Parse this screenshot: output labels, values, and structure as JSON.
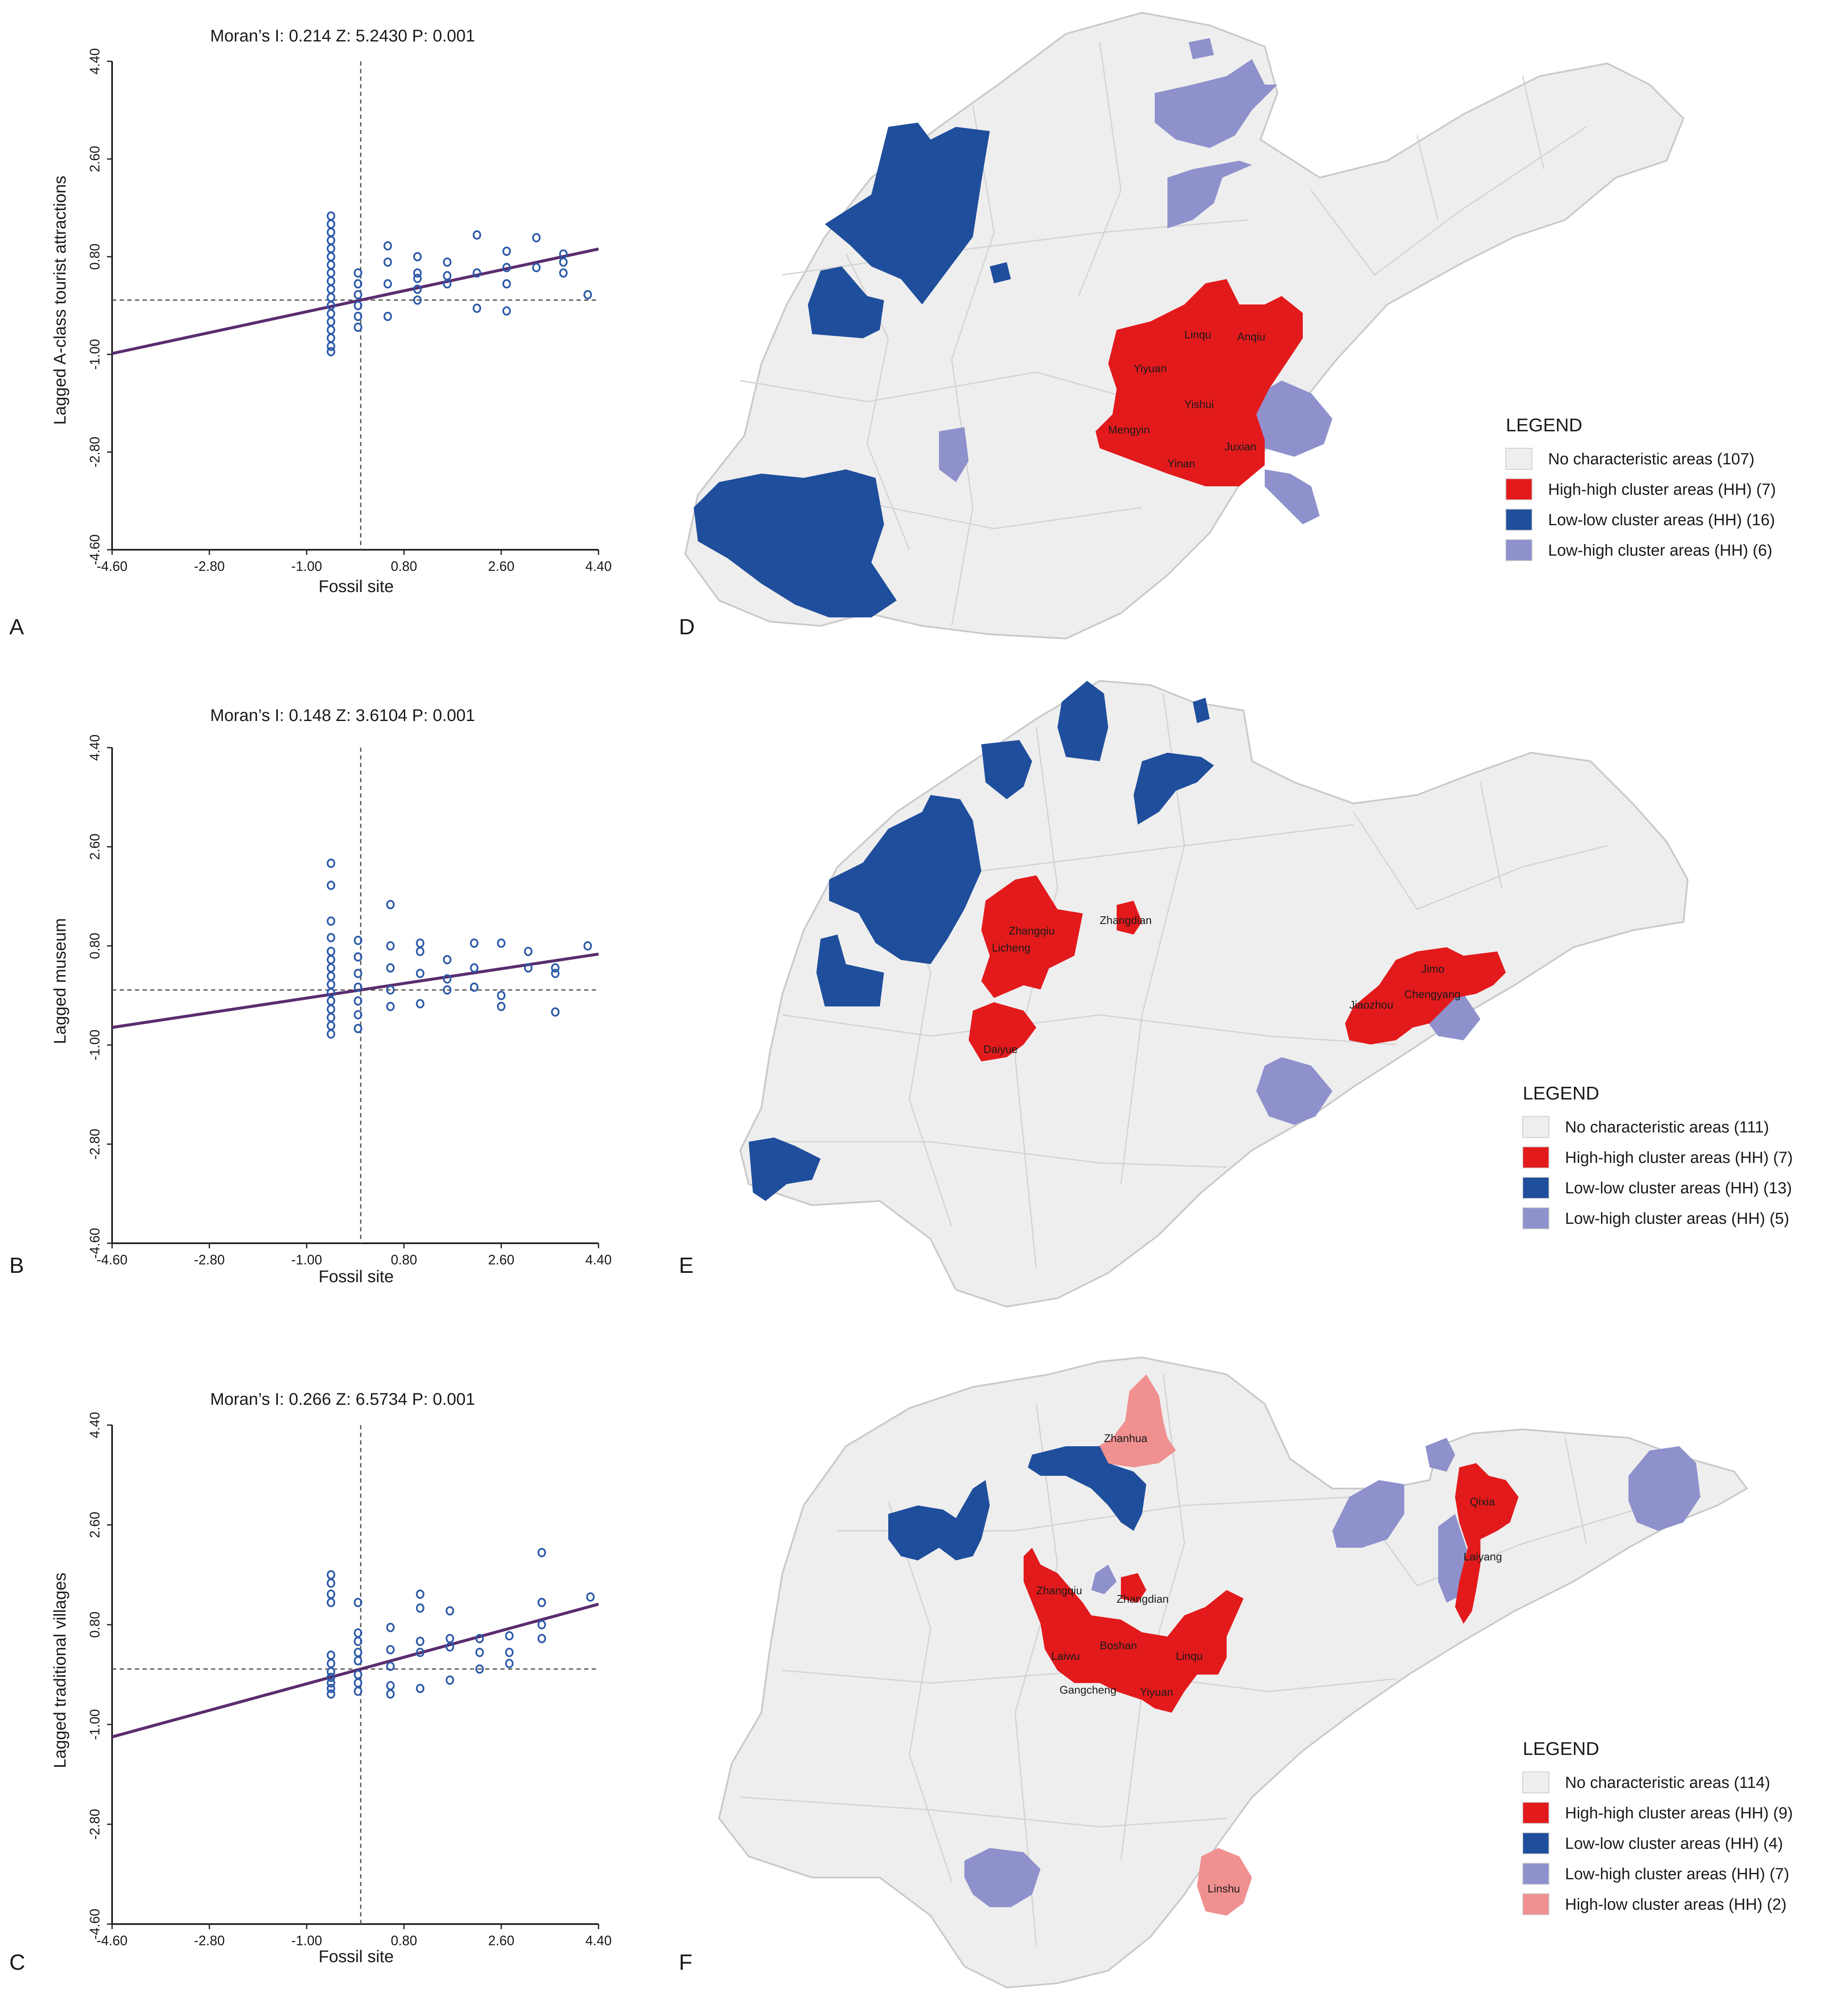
{
  "colors": {
    "point": "#2b59a8",
    "regression": "#5a2d6f",
    "axis": "#222222",
    "no_char": "#eeeeee",
    "boundary": "#c9c9c9",
    "hh": "#e31a1c",
    "ll": "#1f4e9c",
    "lh": "#8e91cc",
    "hl": "#f09090"
  },
  "panel_letters": [
    "A",
    "B",
    "C",
    "D",
    "E",
    "F"
  ],
  "chart_data": [
    {
      "type": "scatter",
      "panel": "A",
      "title": "Moran’s I: 0.214   Z: 5.2430   P: 0.001",
      "moran": {
        "I": "0.214",
        "Z": "5.2430",
        "P": "0.001"
      },
      "xlabel": "Fossil site",
      "ylabel": "Lagged A-class tourist attractions",
      "xlim": [
        -4.6,
        4.4
      ],
      "ylim": [
        -4.6,
        4.4
      ],
      "xticks": [
        "-4.60",
        "-2.80",
        "-1.00",
        "0.80",
        "2.60",
        "4.40"
      ],
      "yticks": [
        "-4.60",
        "-2.80",
        "-1.00",
        "0.80",
        "2.60",
        "4.40"
      ],
      "mean_x": 0.0,
      "mean_y": 0.0,
      "slope": 0.214,
      "points": [
        [
          -0.55,
          1.55
        ],
        [
          -0.55,
          1.4
        ],
        [
          -0.55,
          1.25
        ],
        [
          -0.55,
          1.1
        ],
        [
          -0.55,
          0.95
        ],
        [
          -0.55,
          0.8
        ],
        [
          -0.55,
          0.65
        ],
        [
          -0.55,
          0.5
        ],
        [
          -0.55,
          0.35
        ],
        [
          -0.55,
          0.2
        ],
        [
          -0.55,
          0.05
        ],
        [
          -0.55,
          -0.1
        ],
        [
          -0.55,
          -0.25
        ],
        [
          -0.55,
          -0.4
        ],
        [
          -0.55,
          -0.55
        ],
        [
          -0.55,
          -0.7
        ],
        [
          -0.55,
          -0.85
        ],
        [
          -0.55,
          -0.95
        ],
        [
          -0.05,
          0.5
        ],
        [
          -0.05,
          0.3
        ],
        [
          -0.05,
          0.1
        ],
        [
          -0.05,
          -0.1
        ],
        [
          -0.05,
          -0.3
        ],
        [
          -0.05,
          -0.5
        ],
        [
          0.5,
          1.0
        ],
        [
          0.5,
          0.7
        ],
        [
          0.5,
          0.3
        ],
        [
          0.5,
          -0.3
        ],
        [
          1.05,
          0.8
        ],
        [
          1.05,
          0.5
        ],
        [
          1.05,
          0.4
        ],
        [
          1.05,
          0.2
        ],
        [
          1.05,
          0.0
        ],
        [
          1.6,
          0.7
        ],
        [
          1.6,
          0.45
        ],
        [
          1.6,
          0.3
        ],
        [
          2.15,
          1.2
        ],
        [
          2.15,
          0.5
        ],
        [
          2.15,
          -0.15
        ],
        [
          2.7,
          0.9
        ],
        [
          2.7,
          0.6
        ],
        [
          2.7,
          0.3
        ],
        [
          2.7,
          -0.2
        ],
        [
          3.25,
          1.15
        ],
        [
          3.25,
          0.6
        ],
        [
          3.75,
          0.85
        ],
        [
          3.75,
          0.7
        ],
        [
          3.75,
          0.5
        ],
        [
          4.2,
          0.1
        ]
      ]
    },
    {
      "type": "scatter",
      "panel": "B",
      "title": "Moran’s I: 0.148   Z: 3.6104   P: 0.001",
      "moran": {
        "I": "0.148",
        "Z": "3.6104",
        "P": "0.001"
      },
      "xlabel": "Fossil site",
      "ylabel": "Lagged museum",
      "xlim": [
        -4.6,
        4.4
      ],
      "ylim": [
        -4.6,
        4.4
      ],
      "xticks": [
        "-4.60",
        "-2.80",
        "-1.00",
        "0.80",
        "2.60",
        "4.40"
      ],
      "yticks": [
        "-4.60",
        "-2.80",
        "-1.00",
        "0.80",
        "2.60",
        "4.40"
      ],
      "mean_x": 0.0,
      "mean_y": 0.0,
      "slope": 0.148,
      "points": [
        [
          -0.55,
          2.3
        ],
        [
          -0.55,
          1.9
        ],
        [
          -0.55,
          1.25
        ],
        [
          -0.55,
          0.95
        ],
        [
          -0.55,
          0.7
        ],
        [
          -0.55,
          0.55
        ],
        [
          -0.55,
          0.4
        ],
        [
          -0.55,
          0.25
        ],
        [
          -0.55,
          0.1
        ],
        [
          -0.55,
          -0.05
        ],
        [
          -0.55,
          -0.2
        ],
        [
          -0.55,
          -0.35
        ],
        [
          -0.55,
          -0.5
        ],
        [
          -0.55,
          -0.65
        ],
        [
          -0.55,
          -0.8
        ],
        [
          -0.05,
          0.9
        ],
        [
          -0.05,
          0.6
        ],
        [
          -0.05,
          0.3
        ],
        [
          -0.05,
          0.05
        ],
        [
          -0.05,
          -0.2
        ],
        [
          -0.05,
          -0.45
        ],
        [
          -0.05,
          -0.7
        ],
        [
          0.55,
          1.55
        ],
        [
          0.55,
          0.8
        ],
        [
          0.55,
          0.4
        ],
        [
          0.55,
          0.0
        ],
        [
          0.55,
          -0.3
        ],
        [
          1.1,
          0.85
        ],
        [
          1.1,
          0.7
        ],
        [
          1.1,
          0.3
        ],
        [
          1.1,
          -0.25
        ],
        [
          1.6,
          0.55
        ],
        [
          1.6,
          0.2
        ],
        [
          1.6,
          0.0
        ],
        [
          2.1,
          0.85
        ],
        [
          2.1,
          0.4
        ],
        [
          2.1,
          0.05
        ],
        [
          2.6,
          0.85
        ],
        [
          2.6,
          -0.1
        ],
        [
          2.6,
          -0.3
        ],
        [
          3.1,
          0.7
        ],
        [
          3.1,
          0.4
        ],
        [
          3.6,
          0.4
        ],
        [
          3.6,
          0.3
        ],
        [
          3.6,
          -0.4
        ],
        [
          4.2,
          0.8
        ]
      ]
    },
    {
      "type": "scatter",
      "panel": "C",
      "title": "Moran’s I: 0.266   Z: 6.5734   P: 0.001",
      "moran": {
        "I": "0.266",
        "Z": "6.5734",
        "P": "0.001"
      },
      "xlabel": "Fossil site",
      "ylabel": "Lagged traditional villages",
      "xlim": [
        -4.6,
        4.4
      ],
      "ylim": [
        -4.6,
        4.4
      ],
      "xticks": [
        "-4.60",
        "-2.80",
        "-1.00",
        "0.80",
        "2.60",
        "4.40"
      ],
      "yticks": [
        "-4.60",
        "-2.80",
        "-1.00",
        "0.80",
        "2.60",
        "4.40"
      ],
      "mean_x": 0.0,
      "mean_y": 0.0,
      "slope": 0.266,
      "points": [
        [
          -0.55,
          1.7
        ],
        [
          -0.55,
          1.55
        ],
        [
          -0.55,
          1.35
        ],
        [
          -0.55,
          1.2
        ],
        [
          -0.55,
          0.25
        ],
        [
          -0.55,
          0.1
        ],
        [
          -0.55,
          -0.05
        ],
        [
          -0.55,
          -0.15
        ],
        [
          -0.55,
          -0.25
        ],
        [
          -0.55,
          -0.35
        ],
        [
          -0.55,
          -0.45
        ],
        [
          -0.05,
          1.2
        ],
        [
          -0.05,
          0.65
        ],
        [
          -0.05,
          0.5
        ],
        [
          -0.05,
          0.3
        ],
        [
          -0.05,
          0.15
        ],
        [
          -0.05,
          -0.1
        ],
        [
          -0.05,
          -0.25
        ],
        [
          -0.05,
          -0.4
        ],
        [
          0.55,
          0.75
        ],
        [
          0.55,
          0.35
        ],
        [
          0.55,
          0.05
        ],
        [
          0.55,
          -0.3
        ],
        [
          0.55,
          -0.45
        ],
        [
          1.1,
          1.35
        ],
        [
          1.1,
          1.1
        ],
        [
          1.1,
          0.5
        ],
        [
          1.1,
          0.3
        ],
        [
          1.1,
          -0.35
        ],
        [
          1.65,
          1.05
        ],
        [
          1.65,
          0.55
        ],
        [
          1.65,
          0.4
        ],
        [
          1.65,
          -0.2
        ],
        [
          2.2,
          0.55
        ],
        [
          2.2,
          0.3
        ],
        [
          2.2,
          0.0
        ],
        [
          2.75,
          0.6
        ],
        [
          2.75,
          0.3
        ],
        [
          2.75,
          0.1
        ],
        [
          3.35,
          2.1
        ],
        [
          3.35,
          1.2
        ],
        [
          3.35,
          0.8
        ],
        [
          3.35,
          0.55
        ],
        [
          4.25,
          1.3
        ]
      ]
    }
  ],
  "maps": [
    {
      "panel": "D",
      "legend_title": "LEGEND",
      "legend": [
        {
          "key": "no_char",
          "label": "No characteristic areas (107)"
        },
        {
          "key": "hh",
          "label": "High-high cluster areas (HH) (7)"
        },
        {
          "key": "ll",
          "label": "Low-low cluster areas (HH) (16)"
        },
        {
          "key": "lh",
          "label": "Low-high cluster areas (HH) (6)"
        }
      ],
      "labels": [
        "Linqu",
        "Anqiu",
        "Yiyuan",
        "Yishui",
        "Mengyin",
        "Juxian",
        "Yinan"
      ]
    },
    {
      "panel": "E",
      "legend_title": "LEGEND",
      "legend": [
        {
          "key": "no_char",
          "label": "No characteristic areas (111)"
        },
        {
          "key": "hh",
          "label": "High-high cluster areas (HH) (7)"
        },
        {
          "key": "ll",
          "label": "Low-low cluster areas (HH) (13)"
        },
        {
          "key": "lh",
          "label": "Low-high cluster areas (HH) (5)"
        }
      ],
      "labels": [
        "Zhangdian",
        "Zhangqiu",
        "Licheng",
        "Daiyue",
        "Jimo",
        "Chengyang",
        "Jiaozhou"
      ]
    },
    {
      "panel": "F",
      "legend_title": "LEGEND",
      "legend": [
        {
          "key": "no_char",
          "label": "No characteristic areas (114)"
        },
        {
          "key": "hh",
          "label": "High-high cluster areas (HH) (9)"
        },
        {
          "key": "ll",
          "label": "Low-low cluster areas (HH) (4)"
        },
        {
          "key": "lh",
          "label": "Low-high cluster areas (HH) (7)"
        },
        {
          "key": "hl",
          "label": "High-low cluster areas (HH) (2)"
        }
      ],
      "labels": [
        "Zhanhua",
        "Qixia",
        "Laiyang",
        "Zhangqiu",
        "Zhangdian",
        "Boshan",
        "Laiwu",
        "Linqu",
        "Gangcheng",
        "Yiyuan",
        "Linshu"
      ]
    }
  ]
}
